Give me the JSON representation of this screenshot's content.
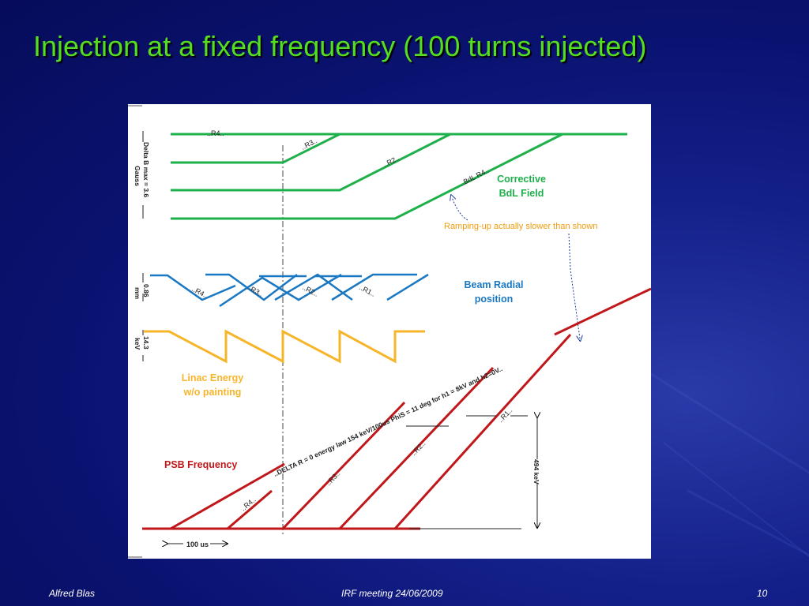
{
  "slide": {
    "title": "Injection at a fixed frequency (100 turns injected)",
    "footer_author": "Alfred Blas",
    "footer_meeting": "IRF meeting  24/06/2009",
    "page_number": "10"
  },
  "diagram": {
    "bdl": {
      "axis_label_line1": "Delta B max = 3.6",
      "axis_label_line2": "Gauss",
      "labels": [
        "..R4..",
        "..R3..",
        "..R2..",
        "..BdL R4.."
      ],
      "title_line1": "Corrective",
      "title_line2": "BdL Field",
      "color": "#1db04b"
    },
    "note": {
      "text": "Ramping-up  actually slower than shown",
      "color": "#f39c12"
    },
    "radial": {
      "axis_label_line1": "0.86",
      "axis_label_line2": "mm",
      "labels": [
        "..R4..",
        "..R3..",
        "..R2..",
        "..R1.."
      ],
      "title_line1": "Beam Radial",
      "title_line2": "position",
      "color": "#1a78c2"
    },
    "linac": {
      "axis_label_line1": "14.3",
      "axis_label_line2": "keV",
      "title_line1": "Linac Energy",
      "title_line2": "w/o painting",
      "color": "#f7b52a"
    },
    "psb": {
      "title": "PSB Frequency",
      "law_text": "..DELTA R = 0 energy law   154 keV/100us  PhiS = 11 deg for h1 = 8kV and h2=0V..",
      "labels": [
        "..R4..",
        "..R3..",
        "..R2..",
        "..R1.."
      ],
      "energy_span": "494 keV",
      "time_span": "100 us",
      "color": "#c0171a"
    }
  }
}
